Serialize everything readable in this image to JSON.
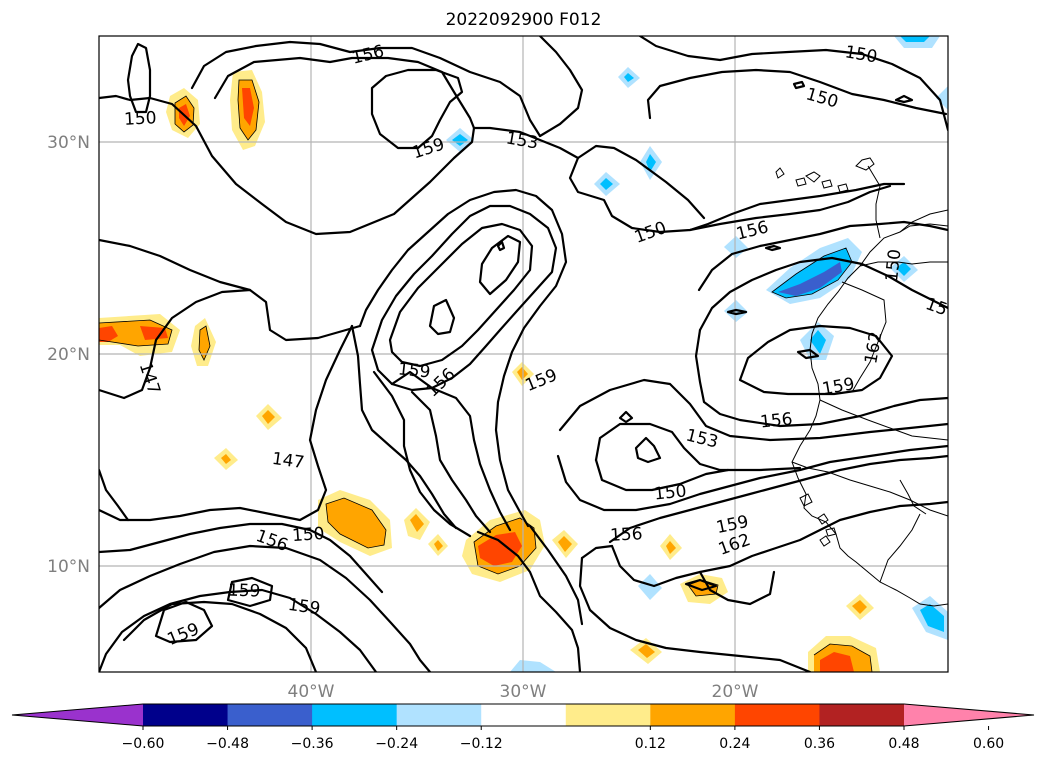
{
  "title": "2022092900 F012",
  "lat_labels": [
    "30°N",
    "20°N",
    "10°N"
  ],
  "lon_labels": [
    "40°W",
    "30°W",
    "20°W"
  ],
  "contour_labels": [
    {
      "text": "156"
    },
    {
      "text": "150"
    },
    {
      "text": "150"
    },
    {
      "text": "150"
    },
    {
      "text": "159"
    },
    {
      "text": "153"
    },
    {
      "text": "150"
    },
    {
      "text": "156"
    },
    {
      "text": "150"
    },
    {
      "text": "15"
    },
    {
      "text": "147"
    },
    {
      "text": "159"
    },
    {
      "text": "156"
    },
    {
      "text": "159"
    },
    {
      "text": "162"
    },
    {
      "text": "159"
    },
    {
      "text": "156"
    },
    {
      "text": "153"
    },
    {
      "text": "147"
    },
    {
      "text": "150"
    },
    {
      "text": "150"
    },
    {
      "text": "156"
    },
    {
      "text": "156"
    },
    {
      "text": "159"
    },
    {
      "text": "162"
    },
    {
      "text": "159"
    },
    {
      "text": "159"
    },
    {
      "text": "159"
    }
  ],
  "colorbar": {
    "ticks": [
      "−0.60",
      "−0.48",
      "−0.36",
      "−0.24",
      "−0.12",
      "0.12",
      "0.24",
      "0.36",
      "0.48",
      "0.60"
    ],
    "colors": [
      "#9a32cd",
      "#00008b",
      "#3a5fcd",
      "#00bfff",
      "#b0e2ff",
      "#ffffff",
      "#ffec8b",
      "#ffa500",
      "#ff4500",
      "#b22222",
      "#ff82ab"
    ]
  }
}
